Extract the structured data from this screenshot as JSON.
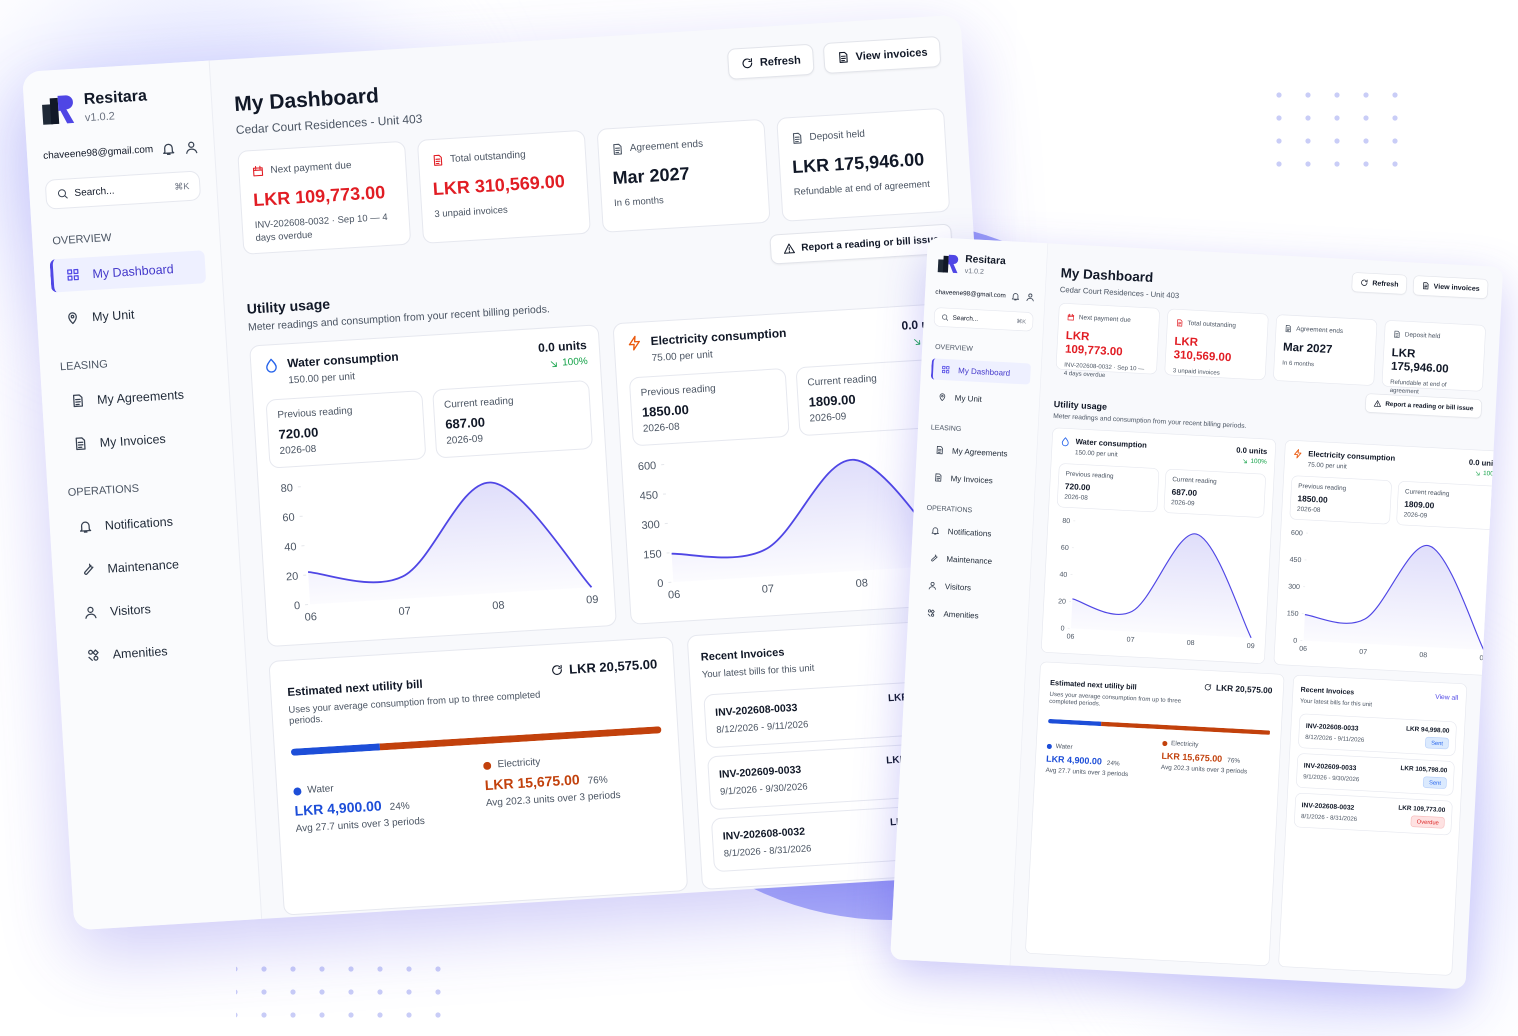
{
  "app": {
    "name": "Resitara",
    "version": "v1.0.2",
    "email": "chaveene98@gmail.com",
    "search": "Search...",
    "shortcut": "⌘K"
  },
  "nav": [
    {
      "title": "OVERVIEW",
      "items": [
        {
          "label": "My Dashboard",
          "active": true
        },
        {
          "label": "My Unit",
          "active": false
        }
      ]
    },
    {
      "title": "LEASING",
      "items": [
        {
          "label": "My Agreements",
          "active": false
        },
        {
          "label": "My Invoices",
          "active": false
        }
      ]
    },
    {
      "title": "OPERATIONS",
      "items": [
        {
          "label": "Notifications",
          "active": false
        },
        {
          "label": "Maintenance",
          "active": false
        },
        {
          "label": "Visitors",
          "active": false
        },
        {
          "label": "Amenities",
          "active": false
        }
      ]
    }
  ],
  "header": {
    "title": "My Dashboard",
    "subtitle": "Cedar Court Residences - Unit 403",
    "actions": [
      "Refresh",
      "View invoices"
    ]
  },
  "cards": [
    {
      "label": "Next payment due",
      "value": "LKR 109,773.00",
      "note": "INV-202608-0032 · Sep 10 — 4 days overdue",
      "color": "#e11d24"
    },
    {
      "label": "Total outstanding",
      "value": "LKR 310,569.00",
      "note": "3 unpaid invoices",
      "color": "#e11d24"
    },
    {
      "label": "Agreement ends",
      "value": "Mar 2027",
      "note": "In 6 months",
      "color": "#111827"
    },
    {
      "label": "Deposit held",
      "value": "LKR 175,946.00",
      "note": "Refundable at end of agreement",
      "color": "#111827"
    }
  ],
  "report_action": "Report a reading or bill issue",
  "utility": {
    "title": "Utility usage",
    "subtitle": "Meter readings and consumption from your recent billing periods."
  },
  "chart_data": [
    {
      "type": "area",
      "title": "Water consumption",
      "rate": "150.00 per unit",
      "usage": "0.0 units",
      "change": "100%",
      "previous": {
        "label": "Previous reading",
        "value": "720.00",
        "period": "2026-08"
      },
      "current": {
        "label": "Current reading",
        "value": "687.00",
        "period": "2026-09"
      },
      "categories": [
        "06",
        "07",
        "08",
        "09"
      ],
      "values": [
        22,
        15,
        75,
        0
      ],
      "ylim": [
        0,
        80
      ],
      "yticks": [
        0,
        20,
        40,
        60,
        80
      ],
      "color": "#4f46e5",
      "icon_color": "#2563eb"
    },
    {
      "type": "area",
      "title": "Electricity consumption",
      "rate": "75.00 per unit",
      "usage": "0.0 units",
      "change": "100%",
      "previous": {
        "label": "Previous reading",
        "value": "1850.00",
        "period": "2026-08"
      },
      "current": {
        "label": "Current reading",
        "value": "1809.00",
        "period": "2026-09"
      },
      "categories": [
        "06",
        "07",
        "08",
        "09"
      ],
      "values": [
        145,
        138,
        565,
        0
      ],
      "ylim": [
        0,
        600
      ],
      "yticks": [
        0,
        150,
        300,
        450,
        600
      ],
      "color": "#4f46e5",
      "icon_color": "#ea580c"
    }
  ],
  "estimate": {
    "title": "Estimated next utility bill",
    "subtitle": "Uses your average consumption from up to three completed periods.",
    "total": "LKR 20,575.00",
    "parts": [
      {
        "name": "Water",
        "amount": "LKR 4,900.00",
        "share": {
          "value": 24,
          "label": "24%"
        },
        "detail": "Avg 27.7 units over 3 periods",
        "color": "#1d4ed8"
      },
      {
        "name": "Electricity",
        "amount": "LKR 15,675.00",
        "share": {
          "value": 76,
          "label": "76%"
        },
        "detail": "Avg 202.3 units over 3 periods",
        "color": "#c2410c"
      }
    ]
  },
  "invoices": {
    "title": "Recent Invoices",
    "subtitle": "Your latest bills for this unit",
    "action": "View all",
    "items": [
      {
        "id": "INV-202608-0033",
        "period": "8/12/2026 - 9/11/2026",
        "amount": "LKR 94,998.00",
        "status": "Sent",
        "status_color": "#2563eb",
        "status_bg": "#dbeafe"
      },
      {
        "id": "INV-202609-0033",
        "period": "9/1/2026 - 9/30/2026",
        "amount": "LKR 105,798.00",
        "status": "Sent",
        "status_color": "#2563eb",
        "status_bg": "#dbeafe"
      },
      {
        "id": "INV-202608-0032",
        "period": "8/1/2026 - 8/31/2026",
        "amount": "LKR 109,773.00",
        "status": "Overdue",
        "status_color": "#dc2626",
        "status_bg": "#fee2e2"
      }
    ]
  }
}
